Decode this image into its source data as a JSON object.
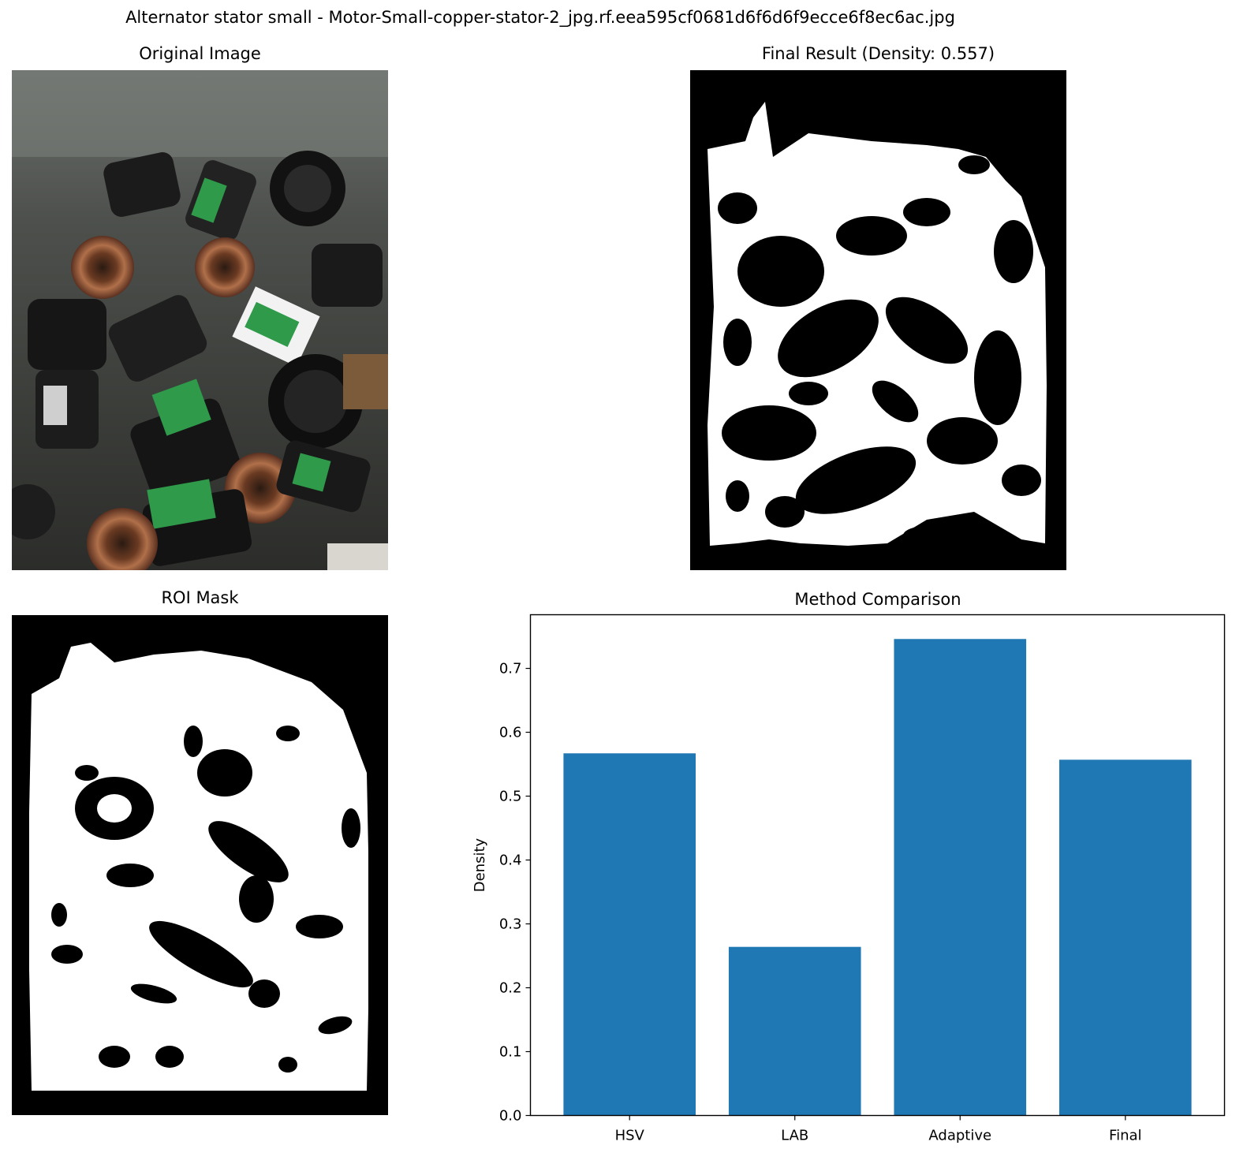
{
  "figure": {
    "suptitle": "Alternator stator small - Motor-Small-copper-stator-2_jpg.rf.eea595cf0681d6f6d6f9ecce6f8ec6ac.jpg"
  },
  "panels": {
    "original": {
      "title": "Original Image"
    },
    "final": {
      "title": "Final Result (Density: 0.557)"
    },
    "roi": {
      "title": "ROI Mask"
    }
  },
  "colors": {
    "bar": "#1f77b4",
    "mask_fg": "#ffffff",
    "mask_bg": "#000000"
  },
  "chart_data": {
    "type": "bar",
    "title": "Method Comparison",
    "xlabel": "",
    "ylabel": "Density",
    "categories": [
      "HSV",
      "LAB",
      "Adaptive",
      "Final"
    ],
    "values": [
      0.567,
      0.264,
      0.746,
      0.557
    ],
    "ylim": [
      0,
      0.784
    ],
    "yticks": [
      0.0,
      0.1,
      0.2,
      0.3,
      0.4,
      0.5,
      0.6,
      0.7
    ],
    "ytick_labels": [
      "0.0",
      "0.1",
      "0.2",
      "0.3",
      "0.4",
      "0.5",
      "0.6",
      "0.7"
    ],
    "grid": false,
    "legend": "none"
  }
}
